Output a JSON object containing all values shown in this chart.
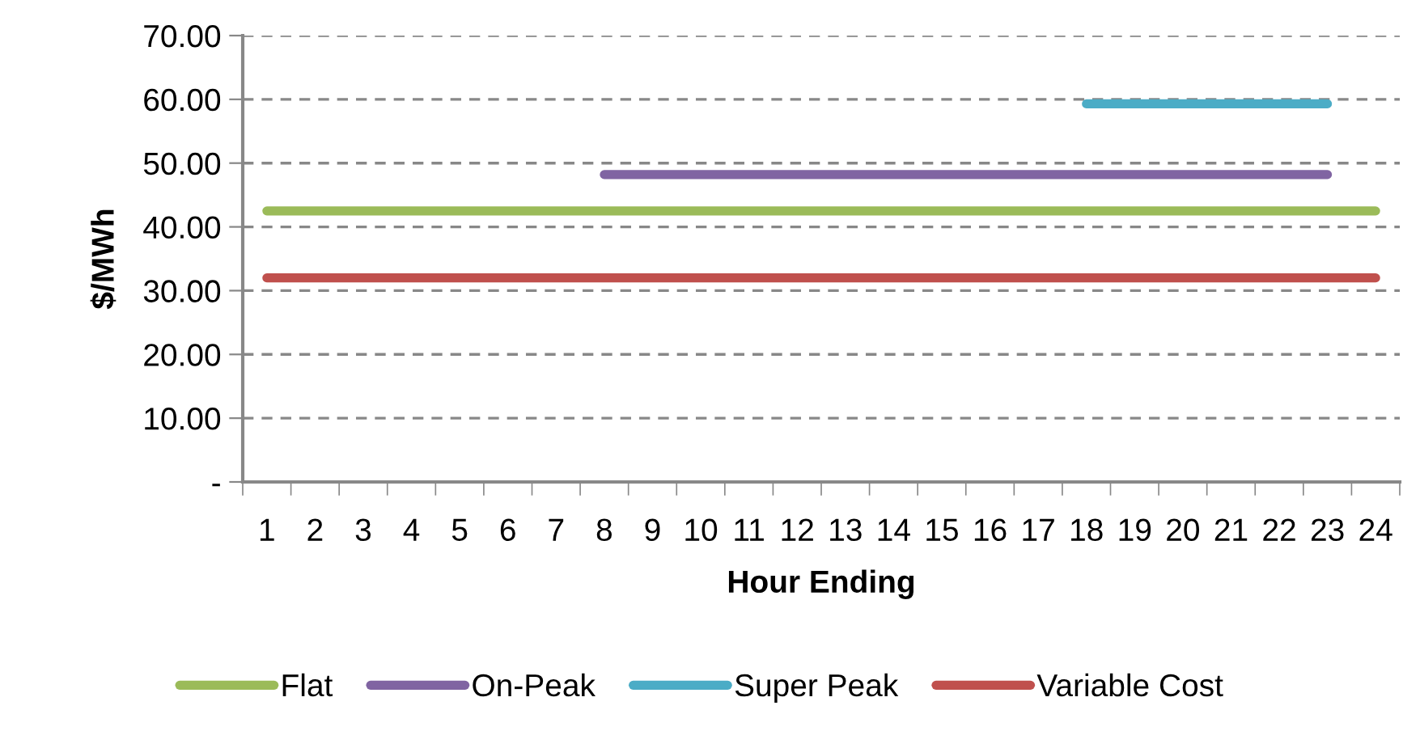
{
  "chart_data": {
    "type": "line",
    "xlabel": "Hour Ending",
    "ylabel": "$/MWh",
    "categories": [
      "1",
      "2",
      "3",
      "4",
      "5",
      "6",
      "7",
      "8",
      "9",
      "10",
      "11",
      "12",
      "13",
      "14",
      "15",
      "16",
      "17",
      "18",
      "19",
      "20",
      "21",
      "22",
      "23",
      "24"
    ],
    "series": [
      {
        "name": "Flat",
        "color": "#9bbb59",
        "values": [
          42.5,
          42.5,
          42.5,
          42.5,
          42.5,
          42.5,
          42.5,
          42.5,
          42.5,
          42.5,
          42.5,
          42.5,
          42.5,
          42.5,
          42.5,
          42.5,
          42.5,
          42.5,
          42.5,
          42.5,
          42.5,
          42.5,
          42.5,
          42.5
        ]
      },
      {
        "name": "On-Peak",
        "color": "#8064a2",
        "values": [
          null,
          null,
          null,
          null,
          null,
          null,
          null,
          48.2,
          48.2,
          48.2,
          48.2,
          48.2,
          48.2,
          48.2,
          48.2,
          48.2,
          48.2,
          48.2,
          48.2,
          48.2,
          48.2,
          48.2,
          48.2,
          null
        ]
      },
      {
        "name": "Super Peak",
        "color": "#4bacc6",
        "values": [
          null,
          null,
          null,
          null,
          null,
          null,
          null,
          null,
          null,
          null,
          null,
          null,
          null,
          null,
          null,
          null,
          null,
          59.3,
          59.3,
          59.3,
          59.3,
          59.3,
          59.3,
          null
        ]
      },
      {
        "name": "Variable Cost",
        "color": "#c0504d",
        "values": [
          32.0,
          32.0,
          32.0,
          32.0,
          32.0,
          32.0,
          32.0,
          32.0,
          32.0,
          32.0,
          32.0,
          32.0,
          32.0,
          32.0,
          32.0,
          32.0,
          32.0,
          32.0,
          32.0,
          32.0,
          32.0,
          32.0,
          32.0,
          32.0
        ]
      }
    ],
    "ylim": [
      0,
      70
    ],
    "yticks": [
      {
        "value": 0,
        "label": "-"
      },
      {
        "value": 10,
        "label": "10.00"
      },
      {
        "value": 20,
        "label": "20.00"
      },
      {
        "value": 30,
        "label": "30.00"
      },
      {
        "value": 40,
        "label": "40.00"
      },
      {
        "value": 50,
        "label": "50.00"
      },
      {
        "value": 60,
        "label": "60.00"
      },
      {
        "value": 70,
        "label": "70.00"
      }
    ],
    "grid": "y",
    "legend": "bottom",
    "marker": "none",
    "line_style": "solid"
  }
}
